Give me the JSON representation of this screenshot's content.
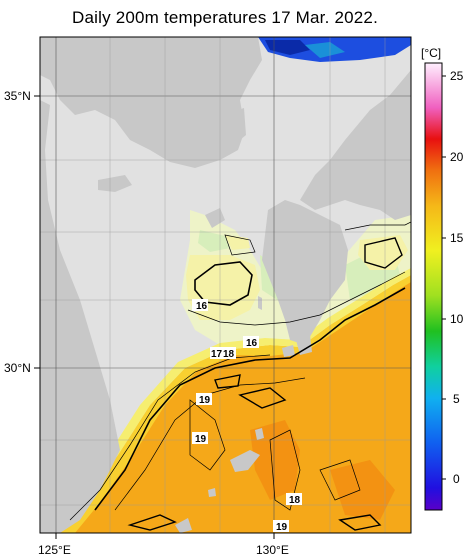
{
  "title": "Daily 200m temperatures 17 Mar. 2022.",
  "colorbar": {
    "unit": "[°C]",
    "ticks": [
      "25",
      "20",
      "15",
      "10",
      "5",
      "0"
    ]
  },
  "axes": {
    "lat_labels": [
      "35°N",
      "30°N"
    ],
    "lon_labels": [
      "125°E",
      "130°E"
    ]
  },
  "contour_labels": [
    "16",
    "16",
    "17",
    "18",
    "19",
    "19",
    "18",
    "19"
  ],
  "colors": {
    "land": "#c8c8c8",
    "no_data": "#e1e1e1",
    "warm": "#f5a819",
    "cool_shelf": "#eef3c8",
    "yellow": "#f6e44a",
    "blue": "#1d4ee0"
  }
}
